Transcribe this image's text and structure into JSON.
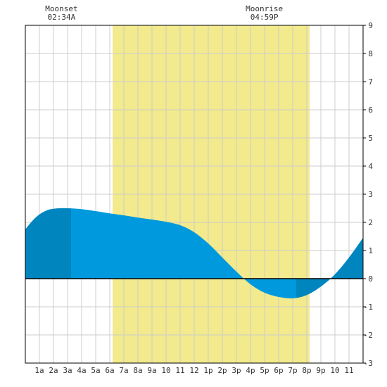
{
  "chart_data": {
    "type": "area",
    "title": "",
    "xlabel": "",
    "ylabel": "",
    "xlim": [
      0,
      24
    ],
    "ylim": [
      -3,
      9
    ],
    "x_ticks": [
      {
        "x": 1,
        "label": "1a"
      },
      {
        "x": 2,
        "label": "2a"
      },
      {
        "x": 3,
        "label": "3a"
      },
      {
        "x": 4,
        "label": "4a"
      },
      {
        "x": 5,
        "label": "5a"
      },
      {
        "x": 6,
        "label": "6a"
      },
      {
        "x": 7,
        "label": "7a"
      },
      {
        "x": 8,
        "label": "8a"
      },
      {
        "x": 9,
        "label": "9a"
      },
      {
        "x": 10,
        "label": "10"
      },
      {
        "x": 11,
        "label": "11"
      },
      {
        "x": 12,
        "label": "12"
      },
      {
        "x": 13,
        "label": "1p"
      },
      {
        "x": 14,
        "label": "2p"
      },
      {
        "x": 15,
        "label": "3p"
      },
      {
        "x": 16,
        "label": "4p"
      },
      {
        "x": 17,
        "label": "5p"
      },
      {
        "x": 18,
        "label": "6p"
      },
      {
        "x": 19,
        "label": "7p"
      },
      {
        "x": 20,
        "label": "8p"
      },
      {
        "x": 21,
        "label": "9p"
      },
      {
        "x": 22,
        "label": "10"
      },
      {
        "x": 23,
        "label": "11"
      }
    ],
    "y_ticks": [
      -3,
      -2,
      -1,
      0,
      1,
      2,
      3,
      4,
      5,
      6,
      7,
      8,
      9
    ],
    "grid": true,
    "daylight": {
      "start": 6.2,
      "end": 20.2,
      "color": "#f2ea8c"
    },
    "moon_band": {
      "start": 3.25,
      "end": 19.25
    },
    "series": [
      {
        "values": [
          [
            0,
            1.75
          ],
          [
            0.5,
            2.05
          ],
          [
            1,
            2.28
          ],
          [
            1.5,
            2.42
          ],
          [
            2,
            2.48
          ],
          [
            2.5,
            2.5
          ],
          [
            3,
            2.5
          ],
          [
            4,
            2.47
          ],
          [
            5,
            2.4
          ],
          [
            6,
            2.32
          ],
          [
            7,
            2.25
          ],
          [
            8,
            2.17
          ],
          [
            9,
            2.1
          ],
          [
            10,
            2.02
          ],
          [
            11,
            1.9
          ],
          [
            12,
            1.65
          ],
          [
            13,
            1.25
          ],
          [
            14,
            0.75
          ],
          [
            15,
            0.25
          ],
          [
            16,
            -0.2
          ],
          [
            17,
            -0.5
          ],
          [
            18,
            -0.65
          ],
          [
            19,
            -0.7
          ],
          [
            20,
            -0.58
          ],
          [
            21,
            -0.28
          ],
          [
            22,
            0.15
          ],
          [
            23,
            0.75
          ],
          [
            24,
            1.45
          ]
        ]
      }
    ],
    "annotations": [
      {
        "label": "Moonset",
        "time": "02:34A",
        "x": 2.57
      },
      {
        "label": "Moonrise",
        "time": "04:59P",
        "x": 16.98
      }
    ],
    "colors": {
      "tide": "#0099dd",
      "tide_dark": "#0085be",
      "grid": "#cccccc",
      "axis": "#000000"
    }
  }
}
